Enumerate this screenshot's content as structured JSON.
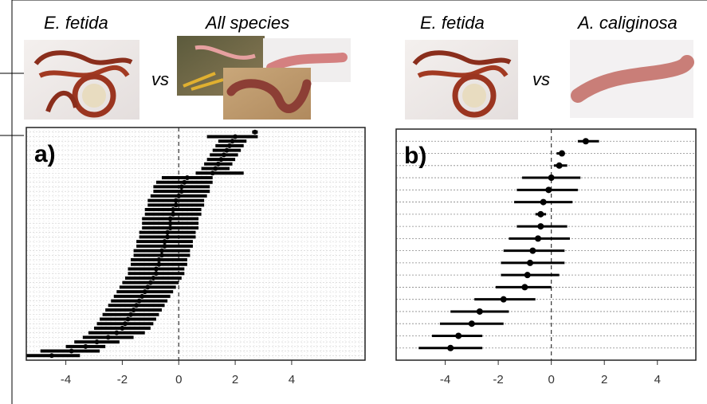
{
  "comparisons": [
    {
      "left": "E. fetida",
      "vs": "vs",
      "right": "All species"
    },
    {
      "left": "E. fetida",
      "vs": "vs",
      "right": "A. caliginosa"
    }
  ],
  "chart_data": [
    {
      "type": "forest",
      "title": "a)",
      "color": "#000000",
      "grid": true,
      "ref_line": 0,
      "xlim": [
        -5.4,
        6.6
      ],
      "xticks": [
        -4,
        -2,
        0,
        2,
        4
      ],
      "values": [
        2.7,
        2.0,
        1.9,
        1.8,
        1.7,
        1.6,
        1.5,
        1.4,
        1.3,
        1.2,
        0.3,
        0.2,
        0.1,
        0.1,
        0.0,
        -0.1,
        -0.1,
        -0.2,
        -0.2,
        -0.3,
        -0.3,
        -0.3,
        -0.4,
        -0.4,
        -0.5,
        -0.5,
        -0.6,
        -0.6,
        -0.7,
        -0.7,
        -0.8,
        -0.8,
        -0.9,
        -1.0,
        -1.1,
        -1.2,
        -1.3,
        -1.4,
        -1.5,
        -1.6,
        -1.7,
        -1.8,
        -1.9,
        -2.0,
        -2.2,
        -2.5,
        -2.9,
        -3.3,
        -3.8,
        -4.5
      ],
      "lower": [
        2.6,
        1.0,
        1.4,
        1.3,
        1.2,
        1.1,
        1.0,
        0.9,
        0.8,
        0.6,
        -0.6,
        -0.8,
        -0.9,
        -0.9,
        -1.0,
        -1.1,
        -1.1,
        -1.2,
        -1.2,
        -1.3,
        -1.3,
        -1.3,
        -1.4,
        -1.4,
        -1.5,
        -1.5,
        -1.6,
        -1.6,
        -1.7,
        -1.7,
        -1.8,
        -1.8,
        -1.9,
        -2.0,
        -2.1,
        -2.2,
        -2.3,
        -2.4,
        -2.5,
        -2.6,
        -2.7,
        -2.8,
        -2.9,
        -3.0,
        -3.2,
        -3.4,
        -3.7,
        -4.0,
        -4.9,
        -5.4
      ],
      "upper": [
        2.8,
        2.8,
        2.4,
        2.3,
        2.2,
        2.1,
        2.0,
        1.9,
        1.8,
        2.3,
        1.2,
        1.2,
        1.1,
        1.1,
        1.0,
        0.9,
        0.9,
        0.8,
        0.8,
        0.7,
        0.7,
        0.7,
        0.6,
        0.6,
        0.5,
        0.5,
        0.4,
        0.4,
        0.3,
        0.3,
        0.2,
        0.2,
        0.1,
        0.0,
        -0.1,
        -0.2,
        -0.3,
        -0.4,
        -0.5,
        -0.6,
        -0.7,
        -0.8,
        -0.9,
        -1.0,
        -1.2,
        -1.6,
        -2.1,
        -2.6,
        -2.8,
        -3.5
      ]
    },
    {
      "type": "forest",
      "title": "b)",
      "color": "#000000",
      "grid": true,
      "ref_line": 0,
      "xlim": [
        -5.85,
        5.45
      ],
      "xticks": [
        -4,
        -2,
        0,
        2,
        4
      ],
      "values": [
        1.3,
        0.4,
        0.3,
        0.0,
        -0.1,
        -0.3,
        -0.4,
        -0.4,
        -0.5,
        -0.7,
        -0.8,
        -0.9,
        -1.0,
        -1.8,
        -2.7,
        -3.0,
        -3.5,
        -3.8
      ],
      "lower": [
        1.0,
        0.2,
        0.1,
        -1.1,
        -1.3,
        -1.4,
        -0.6,
        -1.3,
        -1.6,
        -1.8,
        -1.9,
        -1.9,
        -2.1,
        -2.9,
        -3.8,
        -4.2,
        -4.5,
        -5.0
      ],
      "upper": [
        1.8,
        0.5,
        0.6,
        1.1,
        1.0,
        0.8,
        -0.2,
        0.6,
        0.7,
        0.5,
        0.5,
        0.3,
        0.0,
        -0.6,
        -1.6,
        -1.8,
        -2.6,
        -2.6
      ]
    }
  ]
}
